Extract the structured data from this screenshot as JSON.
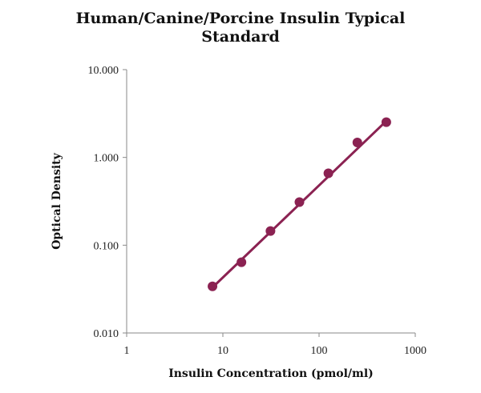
{
  "chart_data": {
    "type": "scatter",
    "title_line1": "Human/Canine/Porcine Insulin Typical",
    "title_line2": "Standard",
    "xlabel": "Insulin Concentration (pmol/ml)",
    "ylabel": "Optical Density",
    "x_scale": "log",
    "y_scale": "log",
    "xlim": [
      1,
      1000
    ],
    "ylim": [
      0.01,
      10
    ],
    "x_ticks": [
      1,
      10,
      100,
      1000
    ],
    "x_tick_labels": [
      "1",
      "10",
      "100",
      "1000"
    ],
    "y_ticks": [
      0.01,
      0.1,
      1,
      10
    ],
    "y_tick_labels": [
      "0.010",
      "0.100",
      "1.000",
      "10.000"
    ],
    "grid": false,
    "legend": "none",
    "color": "#8b2252",
    "series": [
      {
        "x": [
          7.8,
          15.6,
          31.25,
          62.5,
          125,
          250,
          500
        ],
        "y": [
          0.034,
          0.064,
          0.145,
          0.31,
          0.66,
          1.48,
          2.52
        ]
      }
    ],
    "fit_line": {
      "x": [
        7.8,
        500
      ],
      "y": [
        0.033,
        2.6
      ]
    }
  }
}
